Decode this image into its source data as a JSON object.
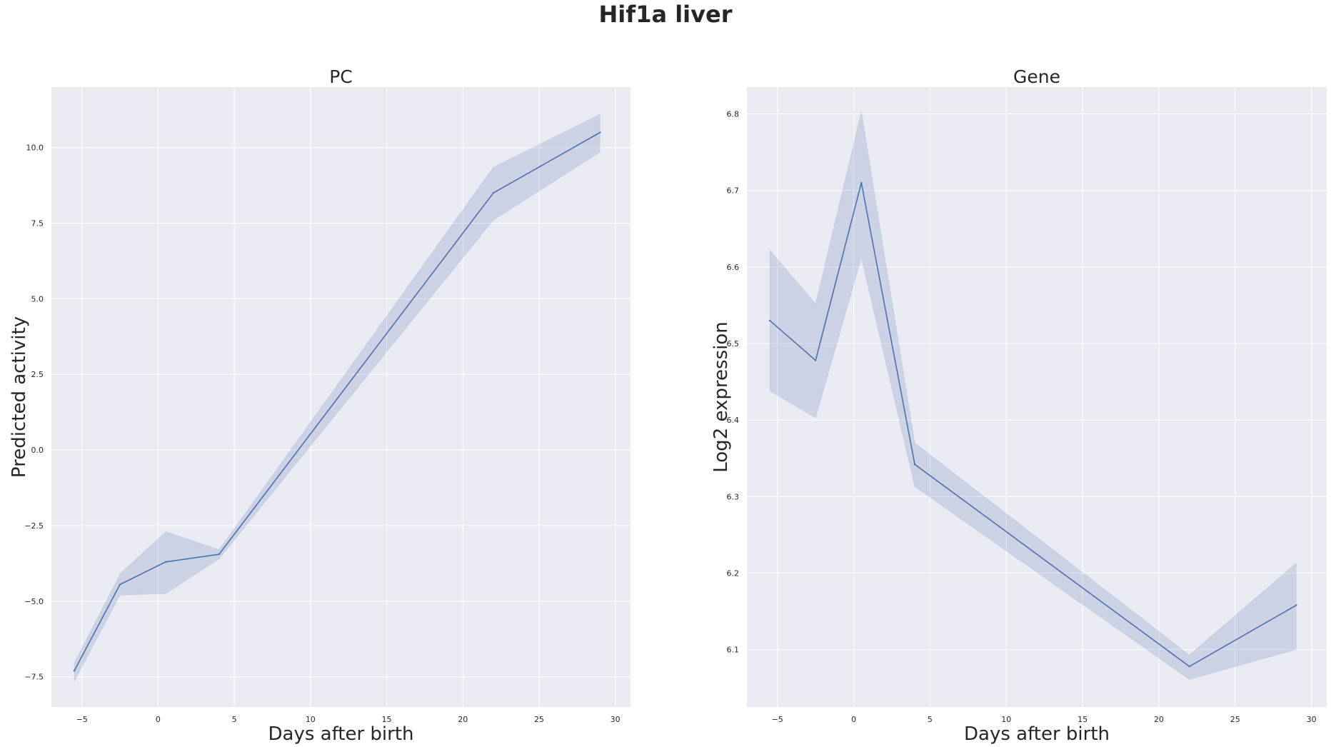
{
  "figure": {
    "title": "Hif1a liver",
    "colors": {
      "background": "#ffffff",
      "axes_face": "#eaeaf2",
      "grid": "#ffffff",
      "line": "#4c72b0",
      "band": "#4c72b0",
      "text": "#262626"
    }
  },
  "chart_data": [
    {
      "type": "line",
      "title": "PC",
      "xlabel": "Days after birth",
      "ylabel": "Predicted activity",
      "xlim": [
        -7,
        31
      ],
      "ylim": [
        -8.5,
        12
      ],
      "xticks": [
        -5,
        0,
        5,
        10,
        15,
        20,
        25,
        30
      ],
      "xtick_labels": [
        "−5",
        "0",
        "5",
        "10",
        "15",
        "20",
        "25",
        "30"
      ],
      "yticks": [
        -7.5,
        -5,
        -2.5,
        0,
        2.5,
        5,
        7.5,
        10
      ],
      "ytick_labels": [
        "−7.5",
        "−5.0",
        "−2.5",
        "0.0",
        "2.5",
        "5.0",
        "7.5",
        "10.0"
      ],
      "grid": true,
      "series": [
        {
          "x": [
            -5.5,
            -2.5,
            0.5,
            4,
            22,
            29
          ],
          "y": [
            -7.3,
            -4.45,
            -3.7,
            -3.45,
            8.5,
            10.5
          ],
          "ci_lower": [
            -7.65,
            -4.8,
            -4.75,
            -3.6,
            7.6,
            9.85
          ],
          "ci_upper": [
            -7.05,
            -4.1,
            -2.7,
            -3.3,
            9.35,
            11.1
          ]
        }
      ]
    },
    {
      "type": "line",
      "title": "Gene",
      "xlabel": "Days after birth",
      "ylabel": "Log2 expression",
      "xlim": [
        -7,
        31
      ],
      "ylim": [
        6.025,
        6.835
      ],
      "xticks": [
        -5,
        0,
        5,
        10,
        15,
        20,
        25,
        30
      ],
      "xtick_labels": [
        "−5",
        "0",
        "5",
        "10",
        "15",
        "20",
        "25",
        "30"
      ],
      "yticks": [
        6.1,
        6.2,
        6.3,
        6.4,
        6.5,
        6.6,
        6.7,
        6.8
      ],
      "ytick_labels": [
        "6.1",
        "6.2",
        "6.3",
        "6.4",
        "6.5",
        "6.6",
        "6.7",
        "6.8"
      ],
      "grid": true,
      "series": [
        {
          "x": [
            -5.5,
            -2.5,
            0.5,
            4,
            22,
            29
          ],
          "y": [
            6.53,
            6.478,
            6.71,
            6.342,
            6.078,
            6.158
          ],
          "ci_lower": [
            6.438,
            6.403,
            6.612,
            6.313,
            6.061,
            6.1
          ],
          "ci_upper": [
            6.622,
            6.552,
            6.803,
            6.37,
            6.093,
            6.213
          ]
        }
      ]
    }
  ]
}
